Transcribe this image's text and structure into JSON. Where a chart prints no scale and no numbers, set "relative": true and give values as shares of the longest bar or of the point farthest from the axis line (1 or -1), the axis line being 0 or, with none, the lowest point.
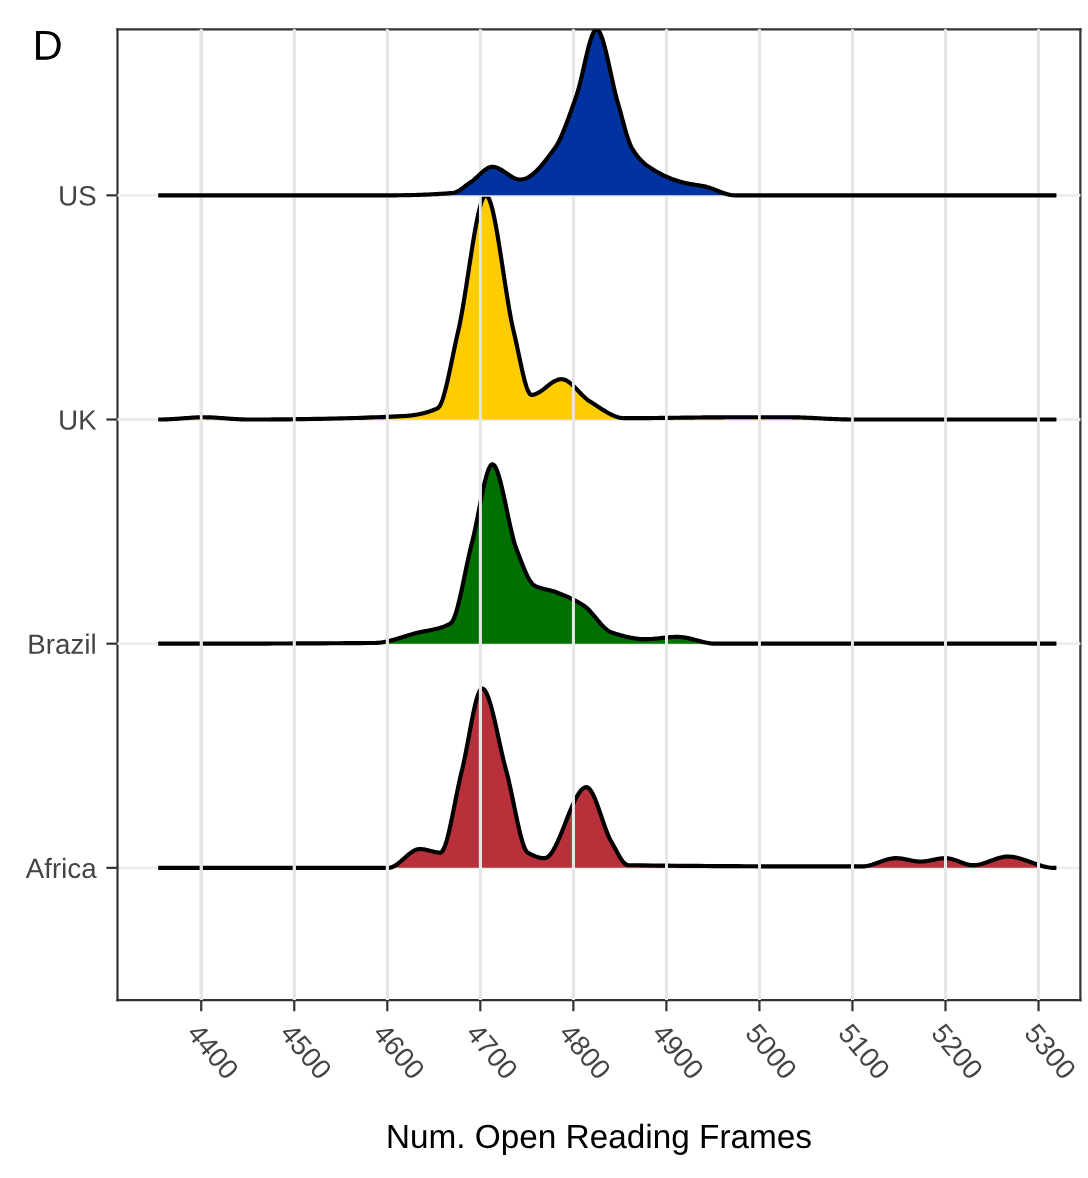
{
  "chart_data": [
    {
      "type": "area",
      "relative": true,
      "legend": false,
      "annotations": [
        "D"
      ],
      "xlim": [
        4310,
        5345
      ],
      "xticks": [
        4400,
        4500,
        4600,
        4700,
        4800,
        4900,
        5000,
        5100,
        5200,
        5300
      ],
      "tick_labels": "y",
      "grid": "x",
      "series": [
        {
          "name": "US",
          "color": "#0033a0",
          "x": [
            4356,
            4600,
            4670,
            4690,
            4713,
            4743,
            4780,
            4803,
            4825,
            4848,
            4863,
            4881,
            4919,
            4941,
            4974,
            5317
          ],
          "values": [
            0,
            0,
            0.014,
            0.081,
            0.172,
            0.095,
            0.284,
            0.595,
            1,
            0.554,
            0.284,
            0.172,
            0.076,
            0.054,
            0,
            0
          ]
        }
      ]
    },
    {
      "type": "area",
      "relative": true,
      "legend": false,
      "xlim": [
        4310,
        5345
      ],
      "xticks": [
        4400,
        4500,
        4600,
        4700,
        4800,
        4900,
        5000,
        5100,
        5200,
        5300
      ],
      "tick_labels": "y",
      "grid": "x",
      "series": [
        {
          "name": "UK",
          "color": "#ffcc00",
          "x": [
            4356,
            4403,
            4450,
            4616,
            4654,
            4676,
            4706,
            4736,
            4755,
            4787,
            4818,
            4855,
            4971,
            5031,
            5100,
            5317
          ],
          "values": [
            0,
            0.01,
            0,
            0.015,
            0.05,
            0.39,
            1.0,
            0.39,
            0.11,
            0.18,
            0.08,
            0.006,
            0.01,
            0.01,
            0,
            0
          ]
        }
      ]
    },
    {
      "type": "area",
      "relative": true,
      "legend": false,
      "xlim": [
        4310,
        5345
      ],
      "xticks": [
        4400,
        4500,
        4600,
        4700,
        4800,
        4900,
        5000,
        5100,
        5200,
        5300
      ],
      "tick_labels": "y",
      "grid": "x",
      "series": [
        {
          "name": "Brazil",
          "color": "#007000",
          "x": [
            4356,
            4586,
            4631,
            4668,
            4691,
            4713,
            4739,
            4758,
            4781,
            4811,
            4841,
            4878,
            4912,
            4953,
            5317
          ],
          "values": [
            0,
            0.004,
            0.059,
            0.113,
            0.563,
            1,
            0.525,
            0.325,
            0.288,
            0.213,
            0.063,
            0.025,
            0.038,
            0,
            0
          ]
        }
      ]
    },
    {
      "type": "area",
      "relative": true,
      "legend": false,
      "xlabel": "Num. Open Reading Frames",
      "xlim": [
        4310,
        5345
      ],
      "xticks": [
        4400,
        4500,
        4600,
        4700,
        4800,
        4900,
        5000,
        5100,
        5200,
        5300
      ],
      "grid": "x",
      "series": [
        {
          "name": "Africa",
          "color": "#b8303a",
          "x": [
            4356,
            4601,
            4635,
            4657,
            4680,
            4702,
            4728,
            4751,
            4769,
            4814,
            4841,
            4859,
            5110,
            5147,
            5173,
            5200,
            5230,
            5267,
            5317
          ],
          "values": [
            0,
            0,
            0.105,
            0.085,
            0.538,
            1,
            0.538,
            0.085,
            0.054,
            0.45,
            0.144,
            0.015,
            0.008,
            0.054,
            0.035,
            0.054,
            0.015,
            0.063,
            0
          ]
        }
      ]
    }
  ]
}
